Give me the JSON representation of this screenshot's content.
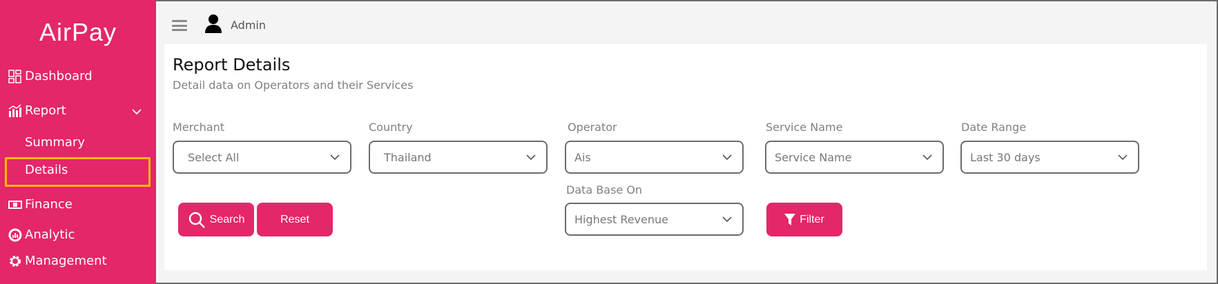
{
  "brand": {
    "logo": "AirPay",
    "primary_color": "#e4266a",
    "highlight_color": "#ffb800"
  },
  "sidebar": {
    "items": [
      {
        "label": "Dashboard",
        "icon": "dashboard-icon"
      },
      {
        "label": "Report",
        "icon": "chart-icon",
        "expanded": true,
        "children": [
          {
            "label": "Summary"
          },
          {
            "label": "Details",
            "active": true
          }
        ]
      },
      {
        "label": "Finance",
        "icon": "money-icon"
      },
      {
        "label": "Analytic",
        "icon": "analytic-icon"
      },
      {
        "label": "Management",
        "icon": "gear-icon"
      }
    ]
  },
  "header": {
    "user": "Admin"
  },
  "page": {
    "title": "Report Details",
    "subtitle": "Detail data on Operators and their Services"
  },
  "filters": [
    {
      "label": "Merchant",
      "value": "Select All"
    },
    {
      "label": "Country",
      "value": "Thailand"
    },
    {
      "label": "Operator",
      "value": "Ais"
    },
    {
      "label": "Service Name",
      "value": "Service Name"
    },
    {
      "label": "Date Range",
      "value": "Last 30 days"
    },
    {
      "label": "Data Base On",
      "value": "Highest Revenue"
    }
  ],
  "buttons": {
    "search": "Search",
    "reset": "Reset",
    "filter": "Filter"
  }
}
